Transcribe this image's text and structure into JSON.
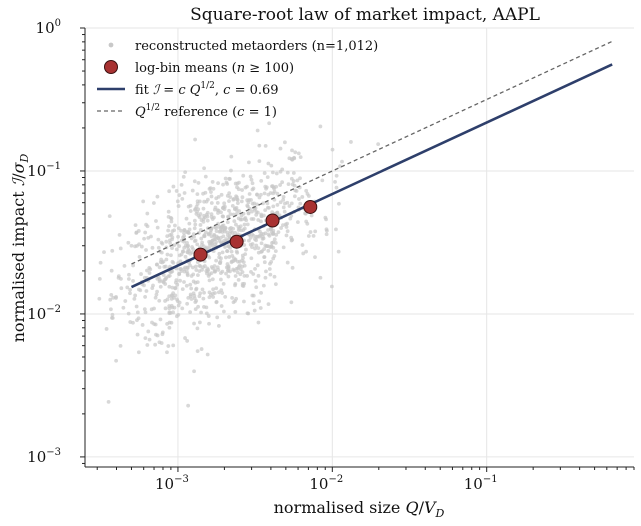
{
  "chart_data": {
    "type": "scatter",
    "title": "Square-root law of market impact, AAPL",
    "xlabel": "normalised size  Q/V_D",
    "ylabel": "normalised impact  ℐ/σ_D",
    "xscale": "log",
    "yscale": "log",
    "xlim": [
      0.00025,
      0.9
    ],
    "ylim": [
      0.00085,
      1.0
    ],
    "x_ticks": [
      0.001,
      0.01,
      0.1
    ],
    "x_tick_labels": [
      "10",
      "10",
      "10"
    ],
    "x_tick_exponents": [
      "−3",
      "−2",
      "−1"
    ],
    "y_ticks": [
      0.001,
      0.01,
      0.1,
      1.0
    ],
    "y_tick_labels": [
      "10",
      "10",
      "10",
      "10"
    ],
    "y_tick_exponents": [
      "−3",
      "−2",
      "−1",
      "0"
    ],
    "grid": true,
    "legend_position": "top-left",
    "colors": {
      "scatter": "#c8c8c8",
      "bin_means": "#a83232",
      "bin_edge": "#3a1010",
      "fit": "#2e3f6b",
      "reference": "#666666",
      "grid": "#e6e6e6"
    },
    "series": [
      {
        "name": "reconstructed metaorders (n=1,012)",
        "kind": "scatter",
        "n": 1012,
        "model": {
          "prefactor": 0.69,
          "exponent": 0.5,
          "log_sd": 0.6
        },
        "x_range": [
          0.0003,
          0.1
        ]
      },
      {
        "name": "log-bin means (n ≥ 100)",
        "kind": "markers",
        "x": [
          0.0014,
          0.0024,
          0.0041,
          0.0072
        ],
        "y": [
          0.026,
          0.032,
          0.045,
          0.056
        ]
      },
      {
        "name": "fit ℐ = c Q^1/2, c = 0.69",
        "kind": "line",
        "c": 0.69,
        "exponent": 0.5,
        "x_range": [
          0.0005,
          0.65
        ]
      },
      {
        "name": "Q^1/2 reference (c = 1)",
        "kind": "dashed-line",
        "c": 1.0,
        "exponent": 0.5,
        "x_range": [
          0.0005,
          0.65
        ]
      }
    ]
  },
  "legend": {
    "scatter_label": "reconstructed metaorders (n=1,012)",
    "means_label_pre": "log-bin means (",
    "means_label_n": "n",
    "means_label_post": " ≥ 100)",
    "fit_label_pre": "fit ",
    "fit_label_I": "ℐ",
    "fit_label_mid": " = ",
    "fit_label_c": "c",
    "fit_label_Q": "Q",
    "fit_label_exp": "1/2",
    "fit_label_sep": ", ",
    "fit_label_c2": "c",
    "fit_label_val": " = 0.69",
    "ref_label_Q": "Q",
    "ref_label_exp": "1/2",
    "ref_label_mid": " reference (",
    "ref_label_c": "c",
    "ref_label_post": " = 1)"
  },
  "axes_text": {
    "title": "Square-root law of market impact, AAPL",
    "xlabel_pre": "normalised size  ",
    "xlabel_Q": "Q",
    "xlabel_slash": "/",
    "xlabel_V": "V",
    "xlabel_sub": "D",
    "ylabel_pre": "normalised impact  ",
    "ylabel_I": "ℐ",
    "ylabel_slash": "/",
    "ylabel_sigma": "σ",
    "ylabel_sub": "D"
  }
}
